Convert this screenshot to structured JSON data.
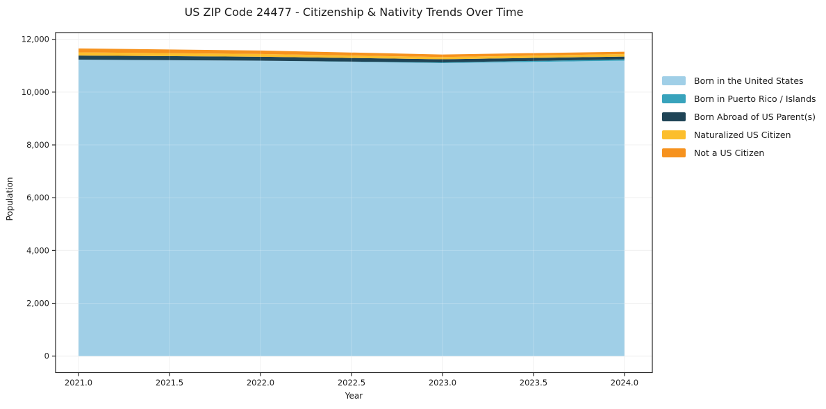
{
  "figure": {
    "background": "#ffffff",
    "frame_color": "#262626",
    "grid_color": "#ececec",
    "text_color": "#1a1a1a"
  },
  "chart_data": {
    "type": "area",
    "stacked": true,
    "title": "US ZIP Code 24477 - Citizenship & Nativity Trends Over Time",
    "xlabel": "Year",
    "ylabel": "Population",
    "x": [
      2021,
      2022,
      2023,
      2024
    ],
    "series": [
      {
        "name": "Born in the United States",
        "color": "#a0cfe7",
        "values": [
          11230,
          11190,
          11100,
          11190
        ]
      },
      {
        "name": "Born in Puerto Rico / Islands",
        "color": "#38a3bc",
        "values": [
          0,
          0,
          25,
          50
        ]
      },
      {
        "name": "Born Abroad of US Parent(s)",
        "color": "#1f4456",
        "values": [
          155,
          150,
          120,
          105
        ]
      },
      {
        "name": "Naturalized US Citizen",
        "color": "#fcbe2c",
        "values": [
          120,
          105,
          85,
          95
        ]
      },
      {
        "name": "Not a US Citizen",
        "color": "#f6921e",
        "values": [
          150,
          130,
          95,
          90
        ]
      }
    ],
    "xlim": [
      2020.874,
      2024.153
    ],
    "ylim": [
      -625,
      12255
    ],
    "x_ticks": {
      "values": [
        2021.0,
        2021.5,
        2022.0,
        2022.5,
        2023.0,
        2023.5,
        2024.0
      ],
      "labels": [
        "2021.0",
        "2021.5",
        "2022.0",
        "2022.5",
        "2023.0",
        "2023.5",
        "2024.0"
      ]
    },
    "y_ticks": {
      "values": [
        0,
        2000,
        4000,
        6000,
        8000,
        10000,
        12000
      ],
      "labels": [
        "0",
        "2,000",
        "4,000",
        "6,000",
        "8,000",
        "10,000",
        "12,000"
      ]
    },
    "grid": true,
    "legend_position": "right-outside"
  }
}
